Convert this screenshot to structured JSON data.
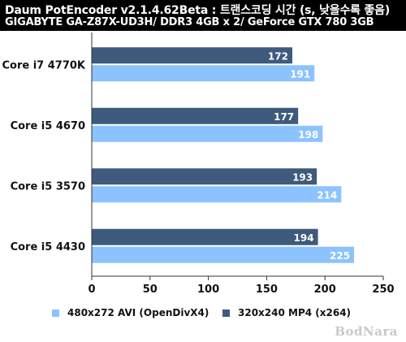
{
  "header": {
    "title_line1": "Daum PotEncoder v2.1.4.62Beta : 트랜스코딩 시간 (s, 낮을수록 좋음)",
    "title_line2": "GIGABYTE GA-Z87X-UD3H/ DDR3 4GB x 2/ GeForce GTX 780 3GB"
  },
  "watermark": "BodNara",
  "colors": {
    "avi": "#8cc3ff",
    "mp4": "#3e5a7c",
    "background": "#ffffff",
    "header_bg": "#000000"
  },
  "chart_data": {
    "type": "bar",
    "orientation": "horizontal",
    "title": "Daum PotEncoder v2.1.4.62Beta : 트랜스코딩 시간 (s, 낮을수록 좋음)",
    "subtitle": "GIGABYTE GA-Z87X-UD3H/ DDR3 4GB x 2/ GeForce GTX 780 3GB",
    "categories": [
      "Core i7 4770K",
      "Core i5 4670",
      "Core i5 3570",
      "Core i5 4430"
    ],
    "series": [
      {
        "name": "320x240 MP4 (x264)",
        "color": "#3e5a7c",
        "values": [
          172,
          177,
          193,
          194
        ]
      },
      {
        "name": "480x272 AVI (OpenDivX4)",
        "color": "#8cc3ff",
        "values": [
          191,
          198,
          214,
          225
        ]
      }
    ],
    "xlim": [
      0,
      250
    ],
    "xticks": [
      "0",
      "50",
      "100",
      "150",
      "200",
      "250"
    ],
    "grid": false,
    "legend_placement": "bottom",
    "legend_order": [
      "480x272 AVI (OpenDivX4)",
      "320x240 MP4 (x264)"
    ]
  }
}
